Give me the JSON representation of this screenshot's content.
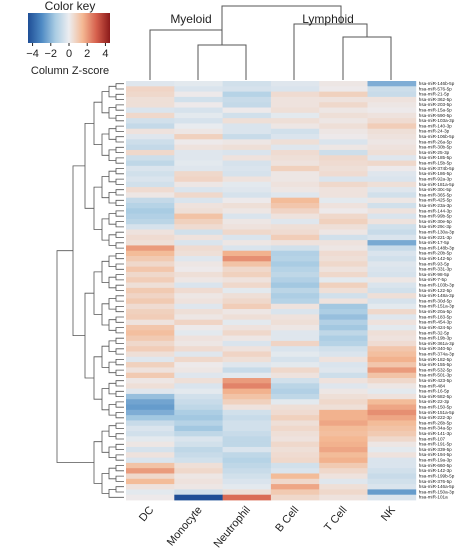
{
  "chart_data": {
    "type": "heatmap",
    "title": "",
    "color_key": {
      "title": "Color key",
      "label": "Column Z-score",
      "ticks": [
        -4,
        -2,
        0,
        2,
        4
      ],
      "tick_labels": [
        "−4",
        "−2",
        "0",
        "2",
        "4"
      ],
      "range": [
        -4.5,
        4.5
      ],
      "colors": [
        "#1f4e96",
        "#4e8ac4",
        "#a9cce3",
        "#ecedf0",
        "#f4b893",
        "#d6604d",
        "#8b1a1a"
      ]
    },
    "column_groups": [
      {
        "label": "Myeloid",
        "columns": [
          "DC",
          "Monocyte",
          "Neutrophil"
        ]
      },
      {
        "label": "Lymphoid",
        "columns": [
          "B Cell",
          "T Cell",
          "NK"
        ]
      }
    ],
    "columns": [
      "DC",
      "Monocyte",
      "Neutrophil",
      "B Cell",
      "T Cell",
      "NK"
    ],
    "rows": [
      "hsa-miR-146b-5p",
      "hsa-miR-576-5p",
      "hsa-miR-21-5p",
      "hsa-miR-362-5p",
      "hsa-miR-203-5p",
      "hsa-miR-15a-5p",
      "hsa-miR-590-5p",
      "hsa-miR-103a-3p",
      "hsa-miR-140-3p",
      "hsa-miR-24-3p",
      "hsa-miR-106b-5p",
      "hsa-miR-26a-5p",
      "hsa-miR-30b-5p",
      "hsa-miR-25-3p",
      "hsa-miR-185-5p",
      "hsa-miR-15b-5p",
      "hsa-miR-374b-5p",
      "hsa-miR-186-5p",
      "hsa-miR-92a-3p",
      "hsa-miR-181a-5p",
      "hsa-miR-30c-5p",
      "hsa-miR-365-5p",
      "hsa-miR-425-5p",
      "hsa-miR-23a-3p",
      "hsa-miR-144-3p",
      "hsa-miR-99b-5p",
      "hsa-miR-30e-5p",
      "hsa-miR-29c-3p",
      "hsa-miR-130a-3p",
      "hsa-miR-221-3p",
      "hsa-miR-17-5p",
      "hsa-miR-148b-3p",
      "hsa-miR-20b-5p",
      "hsa-miR-142-5p",
      "hsa-miR-93-5p",
      "hsa-miR-331-3p",
      "hsa-miR-98-5p",
      "hsa-miR-7-5p",
      "hsa-miR-103b-3p",
      "hsa-miR-122-5p",
      "hsa-miR-148a-3p",
      "hsa-miR-30d-5p",
      "hsa-miR-151a-3p",
      "hsa-miR-20a-5p",
      "hsa-miR-183-5p",
      "hsa-miR-454-3p",
      "hsa-miR-424-5p",
      "hsa-miR-32-5p",
      "hsa-miR-19b-3p",
      "hsa-miR-361a-3p",
      "hsa-miR-340-5p",
      "hsa-miR-374a-3p",
      "hsa-miR-182-5p",
      "hsa-miR-155-5p",
      "hsa-miR-532-5p",
      "hsa-miR-501-3p",
      "hsa-miR-423-5p",
      "hsa-miR-484",
      "hsa-miR-16-5p",
      "hsa-miR-582-5p",
      "hsa-miR-22-3p",
      "hsa-miR-150-5p",
      "hsa-miR-151a-5p",
      "hsa-miR-222-3p",
      "hsa-miR-26b-5p",
      "hsa-miR-34a-5p",
      "hsa-miR-141-3p",
      "hsa-miR-107",
      "hsa-miR-191-5p",
      "hsa-miR-339-5p",
      "hsa-miR-194-5p",
      "hsa-miR-19a-3p",
      "hsa-miR-660-5p",
      "hsa-miR-142-3p",
      "hsa-miR-199b-5p",
      "hsa-miR-376-5p",
      "hsa-miR-146a-5p",
      "hsa-miR-150a-3p",
      "hsa-miR-101a"
    ],
    "z_scores": [
      [
        -0.3,
        -0.2,
        -0.6,
        -0.3,
        0.2,
        -2.2
      ],
      [
        0.7,
        -0.4,
        -0.5,
        -0.4,
        0.1,
        -0.7
      ],
      [
        0.6,
        0.1,
        -1.2,
        0.5,
        0.8,
        -0.8
      ],
      [
        0.4,
        -0.6,
        -0.8,
        0.3,
        0.3,
        0.3
      ],
      [
        0.4,
        0.1,
        -0.9,
        0.3,
        0.6,
        0.2
      ],
      [
        -0.4,
        -0.5,
        0.1,
        0.4,
        0.2,
        0.1
      ],
      [
        0.6,
        -0.2,
        -0.6,
        -0.2,
        0.4,
        0.3
      ],
      [
        -0.6,
        -0.5,
        0.4,
        0.4,
        0.2,
        0.5
      ],
      [
        -0.9,
        -0.1,
        -0.4,
        0.2,
        0.4,
        0.9
      ],
      [
        0.3,
        0.2,
        -0.4,
        -0.6,
        0.2,
        0.4
      ],
      [
        -0.3,
        0.8,
        -0.8,
        -0.4,
        0.1,
        0.3
      ],
      [
        -0.7,
        0.1,
        0.2,
        0.4,
        -0.4,
        0.2
      ],
      [
        -0.9,
        0.3,
        0.4,
        -0.3,
        0.2,
        0.3
      ],
      [
        0.6,
        -0.3,
        -0.4,
        0.5,
        -0.7,
        0.4
      ],
      [
        -0.7,
        -0.3,
        0.3,
        0.4,
        0.6,
        -0.3
      ],
      [
        -1.0,
        -0.2,
        -0.5,
        0.3,
        0.5,
        0.6
      ],
      [
        -0.4,
        -0.3,
        -0.4,
        0.8,
        0.4,
        0.1
      ],
      [
        -0.6,
        0.6,
        -0.5,
        0.2,
        0.5,
        -0.3
      ],
      [
        -0.4,
        0.7,
        0.3,
        0.2,
        -0.4,
        -0.4
      ],
      [
        -0.6,
        0.2,
        -0.2,
        0.3,
        0.6,
        0.4
      ],
      [
        0.5,
        -0.4,
        -0.3,
        0.2,
        0.3,
        -0.3
      ],
      [
        0.2,
        0.6,
        -0.5,
        -0.3,
        0.3,
        -0.6
      ],
      [
        -0.9,
        -0.4,
        0.1,
        1.4,
        -0.2,
        0.2
      ],
      [
        -1.2,
        0.3,
        0.4,
        1.1,
        0.3,
        -0.6
      ],
      [
        -1.5,
        0.4,
        0.2,
        0.7,
        0.1,
        0.3
      ],
      [
        -1.3,
        1.2,
        -0.4,
        0.3,
        0.6,
        -0.4
      ],
      [
        -1.1,
        0.8,
        0.2,
        -0.3,
        0.8,
        0.3
      ],
      [
        -0.5,
        0.5,
        0.3,
        0.4,
        0.4,
        -0.6
      ],
      [
        0.3,
        -0.6,
        0.6,
        0.5,
        0.2,
        -0.8
      ],
      [
        0.5,
        0.3,
        -0.4,
        0.9,
        -0.6,
        -0.4
      ],
      [
        0.4,
        -0.4,
        0.2,
        0.3,
        0.3,
        -2.3
      ],
      [
        2.0,
        0.5,
        -0.4,
        -0.6,
        0.2,
        -0.8
      ],
      [
        1.4,
        0.4,
        1.6,
        -1.3,
        0.5,
        -0.4
      ],
      [
        1.0,
        -0.3,
        2.2,
        -1.2,
        0.4,
        -0.6
      ],
      [
        0.6,
        0.2,
        1.2,
        -1.5,
        0.6,
        -0.3
      ],
      [
        1.1,
        0.1,
        0.6,
        -1.2,
        0.3,
        -0.4
      ],
      [
        0.6,
        0.4,
        0.8,
        -1.0,
        0.6,
        -0.5
      ],
      [
        0.9,
        0.2,
        0.3,
        -1.3,
        -0.2,
        0.2
      ],
      [
        0.4,
        -0.4,
        0.6,
        -1.6,
        0.8,
        -0.4
      ],
      [
        1.0,
        0.5,
        -0.2,
        -1.1,
        0.4,
        -0.6
      ],
      [
        0.7,
        0.2,
        0.4,
        -1.4,
        -0.6,
        0.4
      ],
      [
        1.0,
        0.3,
        0.6,
        -1.2,
        0.3,
        -0.5
      ],
      [
        0.5,
        -0.3,
        0.9,
        0.3,
        -1.6,
        -0.2
      ],
      [
        0.8,
        0.4,
        0.2,
        -0.4,
        -1.4,
        0.6
      ],
      [
        0.9,
        0.2,
        0.4,
        0.3,
        -1.8,
        -0.3
      ],
      [
        0.3,
        0.7,
        -0.2,
        0.4,
        -1.3,
        0.3
      ],
      [
        1.1,
        0.1,
        0.3,
        0.2,
        -1.6,
        -0.2
      ],
      [
        1.3,
        -0.2,
        0.6,
        -0.3,
        -1.0,
        0.4
      ],
      [
        1.0,
        0.3,
        0.2,
        -0.3,
        -1.4,
        0.3
      ],
      [
        0.6,
        0.2,
        -0.4,
        0.7,
        -1.2,
        0.5
      ],
      [
        0.9,
        0.5,
        0.3,
        -0.4,
        -0.6,
        1.1
      ],
      [
        0.4,
        -0.3,
        0.7,
        -0.2,
        -0.4,
        1.3
      ],
      [
        -0.3,
        0.6,
        0.4,
        -0.5,
        0.3,
        1.6
      ],
      [
        0.8,
        0.1,
        -0.3,
        -0.2,
        -0.4,
        1.1
      ],
      [
        0.3,
        0.2,
        -0.8,
        0.6,
        -0.3,
        2.0
      ],
      [
        1.0,
        -0.3,
        -0.2,
        0.3,
        -0.7,
        1.2
      ],
      [
        0.2,
        0.4,
        2.0,
        -0.6,
        0.3,
        0.6
      ],
      [
        0.4,
        -0.4,
        2.4,
        -1.1,
        -0.3,
        0.2
      ],
      [
        -0.3,
        -0.2,
        1.6,
        -1.3,
        0.2,
        -0.2
      ],
      [
        -1.8,
        -0.6,
        1.2,
        -1.0,
        0.4,
        0.3
      ],
      [
        -2.4,
        -0.8,
        0.8,
        -0.2,
        0.6,
        1.4
      ],
      [
        -2.6,
        -1.0,
        0.3,
        0.4,
        0.4,
        1.8
      ],
      [
        -2.2,
        -1.4,
        -0.6,
        0.5,
        1.6,
        2.2
      ],
      [
        -1.6,
        -1.6,
        -0.8,
        0.8,
        1.6,
        1.8
      ],
      [
        -0.8,
        -1.2,
        -0.6,
        0.4,
        1.8,
        1.4
      ],
      [
        -0.4,
        -1.6,
        -0.6,
        0.6,
        1.4,
        1.2
      ],
      [
        -0.6,
        -1.0,
        -0.8,
        0.4,
        1.3,
        1.0
      ],
      [
        -0.2,
        -0.4,
        -1.0,
        0.3,
        1.5,
        0.6
      ],
      [
        0.2,
        -0.6,
        -1.0,
        0.6,
        1.6,
        0.2
      ],
      [
        -0.5,
        -1.0,
        -0.4,
        0.4,
        1.8,
        -0.2
      ],
      [
        0.3,
        -0.8,
        -1.0,
        0.5,
        1.4,
        0.3
      ],
      [
        -0.4,
        -0.6,
        -1.2,
        0.6,
        1.6,
        -0.4
      ],
      [
        1.2,
        0.4,
        -1.0,
        -0.6,
        1.0,
        -0.4
      ],
      [
        2.0,
        0.6,
        -0.8,
        -0.4,
        0.6,
        -0.6
      ],
      [
        0.6,
        0.2,
        -0.6,
        1.4,
        0.3,
        -0.8
      ],
      [
        1.4,
        0.3,
        -0.4,
        0.6,
        -0.3,
        -0.6
      ],
      [
        0.3,
        0.2,
        -0.2,
        1.8,
        0.4,
        -0.4
      ],
      [
        -0.2,
        -0.6,
        0.4,
        1.0,
        0.6,
        -2.6
      ],
      [
        0.1,
        -4.5,
        2.8,
        0.6,
        0.3,
        -0.4
      ]
    ]
  }
}
